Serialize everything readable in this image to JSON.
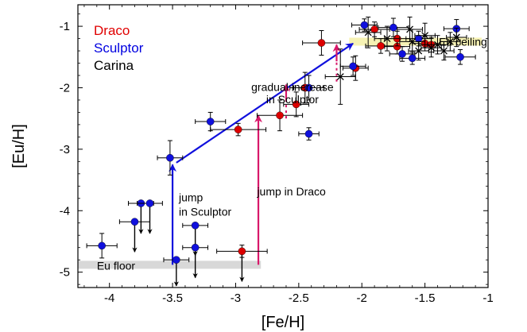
{
  "chart_data": {
    "type": "scatter",
    "xlabel": "[Fe/H]",
    "ylabel": "[Eu/H]",
    "xlim": [
      -4.25,
      -1.0
    ],
    "ylim": [
      -5.25,
      -0.65
    ],
    "xticks": [
      -4,
      -3.5,
      -3,
      -2.5,
      -2,
      -1.5,
      -1
    ],
    "xtick_labels": [
      "-4",
      "-3.5",
      "-3",
      "-2.5",
      "-2",
      "-1.5",
      "-1"
    ],
    "yticks": [
      -5,
      -4,
      -3,
      -2,
      -1
    ],
    "ytick_labels": [
      "-5",
      "-4",
      "-3",
      "-2",
      "-1"
    ],
    "grid": false,
    "legend": {
      "placement": "top-left",
      "entries": [
        {
          "label": "Draco",
          "color": "#e00000"
        },
        {
          "label": "Sculptor",
          "color": "#0000e0"
        },
        {
          "label": "Carina",
          "color": "#000000"
        }
      ]
    },
    "series": [
      {
        "name": "Draco",
        "color": "#dd0000",
        "marker": "circle",
        "points": [
          {
            "x": -2.95,
            "y": -4.66,
            "xerr": 0.2,
            "yerr": 0.1,
            "upper_limit": true
          },
          {
            "x": -2.98,
            "y": -2.68,
            "xerr": 0.22,
            "yerr": 0.1
          },
          {
            "x": -2.65,
            "y": -2.45,
            "xerr": 0.18,
            "yerr": 0.25
          },
          {
            "x": -2.52,
            "y": -2.27,
            "xerr": 0.1,
            "yerr": 0.2
          },
          {
            "x": -2.45,
            "y": -2.0,
            "xerr": 0.12,
            "yerr": 0.25
          },
          {
            "x": -2.32,
            "y": -1.27,
            "xerr": 0.15,
            "yerr": 0.2
          },
          {
            "x": -2.05,
            "y": -1.68,
            "xerr": 0.1,
            "yerr": 0.2
          },
          {
            "x": -1.9,
            "y": -1.05,
            "xerr": 0.12,
            "yerr": 0.12
          },
          {
            "x": -1.85,
            "y": -1.32,
            "xerr": 0.12,
            "yerr": 0.12
          },
          {
            "x": -1.72,
            "y": -1.33,
            "xerr": 0.1,
            "yerr": 0.12
          },
          {
            "x": -1.72,
            "y": -1.2,
            "xerr": 0.1,
            "yerr": 0.12
          },
          {
            "x": -1.5,
            "y": -1.28,
            "xerr": 0.1,
            "yerr": 0.12
          },
          {
            "x": -1.45,
            "y": -1.3,
            "xerr": 0.1,
            "yerr": 0.12
          }
        ]
      },
      {
        "name": "Sculptor",
        "color": "#1010dd",
        "marker": "circle",
        "points": [
          {
            "x": -4.06,
            "y": -4.57,
            "xerr": 0.12,
            "yerr": 0.2
          },
          {
            "x": -3.8,
            "y": -4.18,
            "xerr": 0.12,
            "yerr": 0.0,
            "upper_limit": true
          },
          {
            "x": -3.75,
            "y": -3.88,
            "xerr": 0.1,
            "yerr": 0.0,
            "upper_limit": true
          },
          {
            "x": -3.68,
            "y": -3.88,
            "xerr": 0.1,
            "yerr": 0.0,
            "upper_limit": true
          },
          {
            "x": -3.52,
            "y": -3.14,
            "xerr": 0.1,
            "yerr": 0.28
          },
          {
            "x": -3.47,
            "y": -4.8,
            "xerr": 0.1,
            "yerr": 0.0,
            "upper_limit": true
          },
          {
            "x": -3.32,
            "y": -4.24,
            "xerr": 0.1,
            "yerr": 0.0,
            "upper_limit": true
          },
          {
            "x": -3.32,
            "y": -4.6,
            "xerr": 0.1,
            "yerr": 0.0,
            "upper_limit": true
          },
          {
            "x": -3.2,
            "y": -2.55,
            "xerr": 0.12,
            "yerr": 0.15
          },
          {
            "x": -2.42,
            "y": -2.0,
            "xerr": 0.12,
            "yerr": 0.2
          },
          {
            "x": -2.42,
            "y": -2.75,
            "xerr": 0.08,
            "yerr": 0.1
          },
          {
            "x": -2.07,
            "y": -1.65,
            "xerr": 0.1,
            "yerr": 0.15
          },
          {
            "x": -1.98,
            "y": -0.98,
            "xerr": 0.1,
            "yerr": 0.1
          },
          {
            "x": -1.75,
            "y": -1.02,
            "xerr": 0.12,
            "yerr": 0.15
          },
          {
            "x": -1.68,
            "y": -1.45,
            "xerr": 0.1,
            "yerr": 0.12
          },
          {
            "x": -1.6,
            "y": -1.52,
            "xerr": 0.1,
            "yerr": 0.1
          },
          {
            "x": -1.55,
            "y": -1.2,
            "xerr": 0.1,
            "yerr": 0.12
          },
          {
            "x": -1.25,
            "y": -1.04,
            "xerr": 0.1,
            "yerr": 0.15
          },
          {
            "x": -1.22,
            "y": -1.5,
            "xerr": 0.12,
            "yerr": 0.12
          }
        ]
      },
      {
        "name": "Carina",
        "color": "#000000",
        "marker": "x",
        "points": [
          {
            "x": -2.17,
            "y": -1.82,
            "xerr": 0.12,
            "yerr": 0.45
          },
          {
            "x": -1.95,
            "y": -1.1,
            "xerr": 0.1,
            "yerr": 0.25
          },
          {
            "x": -1.8,
            "y": -1.2,
            "xerr": 0.1,
            "yerr": 0.2
          },
          {
            "x": -1.62,
            "y": -1.05,
            "xerr": 0.1,
            "yerr": 0.2
          },
          {
            "x": -1.6,
            "y": -1.25,
            "xerr": 0.1,
            "yerr": 0.2
          },
          {
            "x": -1.55,
            "y": -1.4,
            "xerr": 0.08,
            "yerr": 0.15
          },
          {
            "x": -1.5,
            "y": -1.15,
            "xerr": 0.08,
            "yerr": 0.2
          },
          {
            "x": -1.45,
            "y": -1.35,
            "xerr": 0.08,
            "yerr": 0.15
          },
          {
            "x": -1.4,
            "y": -1.3,
            "xerr": 0.08,
            "yerr": 0.15
          },
          {
            "x": -1.35,
            "y": -1.4,
            "xerr": 0.08,
            "yerr": 0.15
          },
          {
            "x": -1.3,
            "y": -1.25,
            "xerr": 0.08,
            "yerr": 0.15
          },
          {
            "x": -1.25,
            "y": -1.18,
            "xerr": 0.08,
            "yerr": 0.15
          }
        ]
      }
    ],
    "bands": [
      {
        "label": "Eu floor",
        "color": "#d8d8d8",
        "x": [
          -4.25,
          -2.8
        ],
        "y": -4.88
      },
      {
        "label": "Eu ceiling",
        "color": "#f6f2b4",
        "x": [
          -2.1,
          -1.05
        ],
        "y": -1.25
      }
    ],
    "annotations": [
      {
        "text": "gradual increase",
        "x": -2.55,
        "y": -2.05
      },
      {
        "text": "in Sculptor",
        "x": -2.55,
        "y": -2.25
      },
      {
        "text": "jump",
        "x": -3.45,
        "y": -3.85
      },
      {
        "text": "in Sculptor",
        "x": -3.45,
        "y": -4.08
      },
      {
        "text": "jump in Draco",
        "x": -2.83,
        "y": -3.75
      }
    ],
    "arrows": [
      {
        "name": "sculptor-gradual-arrow",
        "color": "#1010dd",
        "from": [
          -3.47,
          -3.22
        ],
        "to": [
          -2.07,
          -1.28
        ]
      },
      {
        "name": "sculptor-jump-arrow",
        "color": "#1010dd",
        "from": [
          -3.5,
          -4.88
        ],
        "to": [
          -3.5,
          -3.25
        ]
      },
      {
        "name": "draco-jump-arrow",
        "color": "#d8186a",
        "from": [
          -2.82,
          -4.88
        ],
        "to": [
          -2.82,
          -2.45
        ]
      },
      {
        "name": "draco-step-arrow-1",
        "color": "#d8186a",
        "from": [
          -2.6,
          -2.5
        ],
        "to": [
          -2.6,
          -1.95
        ],
        "dashed_tail": true
      },
      {
        "name": "draco-step-arrow-2",
        "color": "#d8186a",
        "from": [
          -2.2,
          -1.9
        ],
        "to": [
          -2.2,
          -1.3
        ],
        "dashed_tail": true
      }
    ]
  }
}
